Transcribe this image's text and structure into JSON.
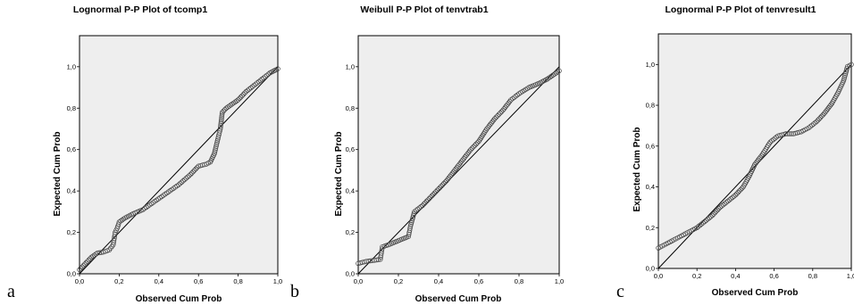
{
  "chart_data": [
    {
      "type": "scatter",
      "title": "Lognormal P-P Plot of tcomp1",
      "xlabel": "Observed Cum Prob",
      "ylabel": "Expected Cum Prob",
      "panel_letter": "a",
      "xlim": [
        0,
        1
      ],
      "ylim": [
        0,
        1.15
      ],
      "xticks": [
        "0,0",
        "0,2",
        "0,4",
        "0,6",
        "0,8",
        "1,0"
      ],
      "yticks": [
        "0,0",
        "0,2",
        "0,4",
        "0,6",
        "0,8",
        "1,0"
      ],
      "reference_line": [
        [
          0,
          0
        ],
        [
          1,
          1
        ]
      ],
      "points": [
        [
          0.0,
          0.02
        ],
        [
          0.02,
          0.04
        ],
        [
          0.04,
          0.06
        ],
        [
          0.06,
          0.08
        ],
        [
          0.09,
          0.1
        ],
        [
          0.12,
          0.105
        ],
        [
          0.15,
          0.115
        ],
        [
          0.17,
          0.14
        ],
        [
          0.18,
          0.2
        ],
        [
          0.19,
          0.22
        ],
        [
          0.2,
          0.25
        ],
        [
          0.23,
          0.27
        ],
        [
          0.27,
          0.29
        ],
        [
          0.32,
          0.31
        ],
        [
          0.38,
          0.35
        ],
        [
          0.44,
          0.39
        ],
        [
          0.5,
          0.43
        ],
        [
          0.56,
          0.48
        ],
        [
          0.6,
          0.52
        ],
        [
          0.64,
          0.53
        ],
        [
          0.66,
          0.54
        ],
        [
          0.68,
          0.58
        ],
        [
          0.7,
          0.66
        ],
        [
          0.71,
          0.7
        ],
        [
          0.72,
          0.78
        ],
        [
          0.74,
          0.8
        ],
        [
          0.77,
          0.82
        ],
        [
          0.8,
          0.84
        ],
        [
          0.84,
          0.88
        ],
        [
          0.88,
          0.91
        ],
        [
          0.92,
          0.94
        ],
        [
          0.96,
          0.97
        ],
        [
          1.0,
          0.99
        ]
      ]
    },
    {
      "type": "scatter",
      "title": "Weibull P-P Plot of tenvtrab1",
      "xlabel": "Observed Cum Prob",
      "ylabel": "Expected Cum Prob",
      "panel_letter": "b",
      "xlim": [
        0,
        1
      ],
      "ylim": [
        0,
        1.15
      ],
      "xticks": [
        "0,0",
        "0,2",
        "0,4",
        "0,6",
        "0,8",
        "1,0"
      ],
      "yticks": [
        "0,0",
        "0,2",
        "0,4",
        "0,6",
        "0,8",
        "1,0"
      ],
      "reference_line": [
        [
          0,
          0
        ],
        [
          1,
          1
        ]
      ],
      "points": [
        [
          0.0,
          0.05
        ],
        [
          0.04,
          0.06
        ],
        [
          0.08,
          0.065
        ],
        [
          0.11,
          0.07
        ],
        [
          0.12,
          0.13
        ],
        [
          0.15,
          0.14
        ],
        [
          0.2,
          0.16
        ],
        [
          0.25,
          0.18
        ],
        [
          0.26,
          0.23
        ],
        [
          0.28,
          0.3
        ],
        [
          0.32,
          0.33
        ],
        [
          0.36,
          0.37
        ],
        [
          0.4,
          0.41
        ],
        [
          0.44,
          0.45
        ],
        [
          0.48,
          0.5
        ],
        [
          0.52,
          0.55
        ],
        [
          0.56,
          0.6
        ],
        [
          0.6,
          0.64
        ],
        [
          0.64,
          0.7
        ],
        [
          0.68,
          0.75
        ],
        [
          0.72,
          0.79
        ],
        [
          0.76,
          0.84
        ],
        [
          0.8,
          0.87
        ],
        [
          0.85,
          0.9
        ],
        [
          0.9,
          0.92
        ],
        [
          0.94,
          0.94
        ],
        [
          0.97,
          0.96
        ],
        [
          1.0,
          0.98
        ]
      ]
    },
    {
      "type": "scatter",
      "title": "Lognormal P-P Plot of tenvresult1",
      "xlabel": "Observed Cum Prob",
      "ylabel": "Expected Cum Prob",
      "panel_letter": "c",
      "xlim": [
        0,
        1
      ],
      "ylim": [
        0,
        1.15
      ],
      "xticks": [
        "0,0",
        "0,2",
        "0,4",
        "0,6",
        "0,8",
        "1,0"
      ],
      "yticks": [
        "0,0",
        "0,2",
        "0,4",
        "0,6",
        "0,8",
        "1,0"
      ],
      "reference_line": [
        [
          0,
          0
        ],
        [
          1,
          1
        ]
      ],
      "points": [
        [
          0.0,
          0.1
        ],
        [
          0.04,
          0.12
        ],
        [
          0.08,
          0.14
        ],
        [
          0.12,
          0.16
        ],
        [
          0.16,
          0.18
        ],
        [
          0.2,
          0.2
        ],
        [
          0.24,
          0.23
        ],
        [
          0.28,
          0.26
        ],
        [
          0.32,
          0.3
        ],
        [
          0.36,
          0.33
        ],
        [
          0.4,
          0.36
        ],
        [
          0.44,
          0.4
        ],
        [
          0.47,
          0.45
        ],
        [
          0.5,
          0.51
        ],
        [
          0.54,
          0.56
        ],
        [
          0.58,
          0.62
        ],
        [
          0.62,
          0.65
        ],
        [
          0.66,
          0.66
        ],
        [
          0.7,
          0.66
        ],
        [
          0.74,
          0.67
        ],
        [
          0.78,
          0.69
        ],
        [
          0.82,
          0.72
        ],
        [
          0.86,
          0.76
        ],
        [
          0.9,
          0.81
        ],
        [
          0.93,
          0.86
        ],
        [
          0.96,
          0.92
        ],
        [
          0.98,
          0.99
        ],
        [
          1.0,
          1.0
        ]
      ]
    }
  ],
  "colors": {
    "plot_background": "#eeeeee",
    "marker_stroke": "#444444",
    "reference_line": "#000000"
  }
}
